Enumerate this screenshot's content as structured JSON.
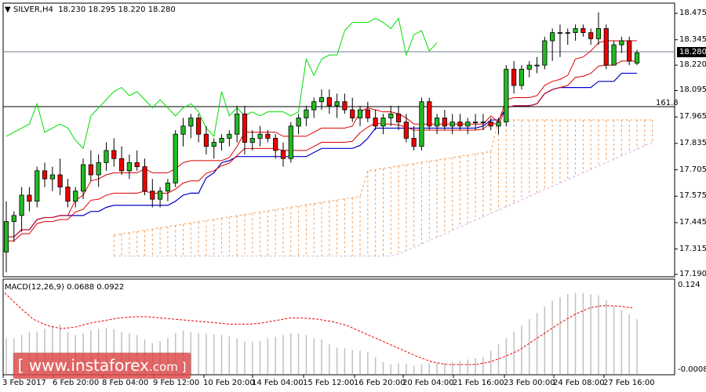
{
  "header": {
    "symbol": "SILVER,H4",
    "ohlc": "18.230 18.295 18.220 18.280",
    "arrow": "▼"
  },
  "price_axis": {
    "ticks": [
      "18.475",
      "18.345",
      "18.280",
      "18.220",
      "18.095",
      "17.965",
      "17.835",
      "17.705",
      "17.575",
      "17.445",
      "17.315",
      "17.190"
    ],
    "current_price": "18.280"
  },
  "fib_label": "161.8",
  "macd": {
    "title": "MACD(12,26,9) 0.0688 0.0922",
    "axis_top": "0.124",
    "axis_bottom": "-0.0008"
  },
  "time_axis": [
    "3 Feb 2017",
    "6 Feb 20:00",
    "8 Feb 04:00",
    "9 Feb 12:00",
    "10 Feb 20:00",
    "14 Feb 04:00",
    "15 Feb 12:00",
    "16 Feb 20:00",
    "20 Feb 04:00",
    "21 Feb 16:00",
    "23 Feb 00:00",
    "24 Feb 08:00",
    "27 Feb 16:00"
  ],
  "watermark": {
    "text": "[ www.instaforex",
    "suffix": ".com ]"
  },
  "colors": {
    "bull": "#22bb22",
    "bear": "#ee0000",
    "kijun": "#0000cc",
    "tenkan": "#dd0000",
    "chikou": "#00dd00",
    "cloud": "#f0a060",
    "cloud_b": "#d8b0e0",
    "macd_hist": "#c0c0c0",
    "macd_signal": "#ee0000"
  },
  "chart_data": {
    "type": "candlestick",
    "title": "SILVER,H4",
    "ylim": [
      17.19,
      18.52
    ],
    "x_labels": [
      "3 Feb 2017",
      "6 Feb 20:00",
      "8 Feb 04:00",
      "9 Feb 12:00",
      "10 Feb 20:00",
      "14 Feb 04:00",
      "15 Feb 12:00",
      "16 Feb 20:00",
      "20 Feb 04:00",
      "21 Feb 16:00",
      "23 Feb 00:00",
      "24 Feb 08:00",
      "27 Feb 16:00"
    ],
    "last_bar": {
      "open": 18.23,
      "high": 18.295,
      "low": 18.22,
      "close": 18.28
    },
    "horizontal_lines": [
      {
        "label": "161.8",
        "value": 18.0
      },
      {
        "label": "current",
        "value": 18.28
      }
    ],
    "candles": [
      [
        17.3,
        17.55,
        17.2,
        17.45
      ],
      [
        17.45,
        17.5,
        17.35,
        17.48
      ],
      [
        17.48,
        17.62,
        17.4,
        17.58
      ],
      [
        17.58,
        17.62,
        17.5,
        17.55
      ],
      [
        17.55,
        17.72,
        17.52,
        17.7
      ],
      [
        17.7,
        17.74,
        17.62,
        17.66
      ],
      [
        17.66,
        17.72,
        17.6,
        17.68
      ],
      [
        17.68,
        17.76,
        17.58,
        17.62
      ],
      [
        17.62,
        17.66,
        17.52,
        17.55
      ],
      [
        17.55,
        17.62,
        17.52,
        17.6
      ],
      [
        17.6,
        17.76,
        17.56,
        17.73
      ],
      [
        17.73,
        17.8,
        17.65,
        17.68
      ],
      [
        17.68,
        17.78,
        17.62,
        17.74
      ],
      [
        17.74,
        17.84,
        17.7,
        17.8
      ],
      [
        17.8,
        17.86,
        17.72,
        17.76
      ],
      [
        17.76,
        17.82,
        17.68,
        17.7
      ],
      [
        17.7,
        17.78,
        17.66,
        17.74
      ],
      [
        17.74,
        17.8,
        17.7,
        17.72
      ],
      [
        17.72,
        17.76,
        17.58,
        17.6
      ],
      [
        17.6,
        17.66,
        17.52,
        17.56
      ],
      [
        17.56,
        17.62,
        17.52,
        17.6
      ],
      [
        17.6,
        17.66,
        17.55,
        17.64
      ],
      [
        17.64,
        17.9,
        17.62,
        17.88
      ],
      [
        17.88,
        17.96,
        17.82,
        17.92
      ],
      [
        17.92,
        17.98,
        17.86,
        17.96
      ],
      [
        17.96,
        17.98,
        17.84,
        17.88
      ],
      [
        17.88,
        17.92,
        17.78,
        17.82
      ],
      [
        17.82,
        17.86,
        17.76,
        17.84
      ],
      [
        17.84,
        17.88,
        17.8,
        17.86
      ],
      [
        17.86,
        17.9,
        17.82,
        17.88
      ],
      [
        17.88,
        18.02,
        17.84,
        17.98
      ],
      [
        17.98,
        18.02,
        17.78,
        17.84
      ],
      [
        17.84,
        17.9,
        17.8,
        17.86
      ],
      [
        17.86,
        17.92,
        17.82,
        17.88
      ],
      [
        17.88,
        17.9,
        17.84,
        17.86
      ],
      [
        17.86,
        17.88,
        17.76,
        17.8
      ],
      [
        17.8,
        17.84,
        17.72,
        17.76
      ],
      [
        17.76,
        17.94,
        17.74,
        17.92
      ],
      [
        17.92,
        17.98,
        17.88,
        17.96
      ],
      [
        17.96,
        18.02,
        17.92,
        18.0
      ],
      [
        18.0,
        18.06,
        17.96,
        18.04
      ],
      [
        18.04,
        18.1,
        18.0,
        18.06
      ],
      [
        18.06,
        18.1,
        17.98,
        18.02
      ],
      [
        18.02,
        18.08,
        17.96,
        18.04
      ],
      [
        18.04,
        18.08,
        17.98,
        18.0
      ],
      [
        18.0,
        18.06,
        17.94,
        17.96
      ],
      [
        17.96,
        18.02,
        17.92,
        18.0
      ],
      [
        18.0,
        18.04,
        17.94,
        17.96
      ],
      [
        17.96,
        18.0,
        17.9,
        17.92
      ],
      [
        17.92,
        17.98,
        17.88,
        17.96
      ],
      [
        17.96,
        18.02,
        17.92,
        17.98
      ],
      [
        17.98,
        18.02,
        17.9,
        17.94
      ],
      [
        17.94,
        17.98,
        17.84,
        17.86
      ],
      [
        17.86,
        17.92,
        17.8,
        17.82
      ],
      [
        17.82,
        18.06,
        17.8,
        18.04
      ],
      [
        18.04,
        18.06,
        17.9,
        17.92
      ],
      [
        17.92,
        17.98,
        17.88,
        17.96
      ],
      [
        17.96,
        18.0,
        17.9,
        17.92
      ],
      [
        17.92,
        17.98,
        17.88,
        17.94
      ],
      [
        17.94,
        17.98,
        17.9,
        17.92
      ],
      [
        17.92,
        17.96,
        17.88,
        17.94
      ],
      [
        17.94,
        17.98,
        17.9,
        17.94
      ],
      [
        17.94,
        17.98,
        17.9,
        17.94
      ],
      [
        17.94,
        17.96,
        17.9,
        17.92
      ],
      [
        17.92,
        17.96,
        17.88,
        17.94
      ],
      [
        17.94,
        18.22,
        17.92,
        18.2
      ],
      [
        18.2,
        18.24,
        18.08,
        18.12
      ],
      [
        18.12,
        18.22,
        18.1,
        18.2
      ],
      [
        18.2,
        18.24,
        18.16,
        18.22
      ],
      [
        18.22,
        18.26,
        18.18,
        18.22
      ],
      [
        18.22,
        18.36,
        18.2,
        18.34
      ],
      [
        18.34,
        18.4,
        18.24,
        18.38
      ],
      [
        18.38,
        18.42,
        18.26,
        18.38
      ],
      [
        18.38,
        18.4,
        18.32,
        18.38
      ],
      [
        18.38,
        18.42,
        18.34,
        18.4
      ],
      [
        18.4,
        18.42,
        18.36,
        18.38
      ],
      [
        18.38,
        18.4,
        18.32,
        18.35
      ],
      [
        18.35,
        18.48,
        18.32,
        18.4
      ],
      [
        18.4,
        18.42,
        18.2,
        18.22
      ],
      [
        18.22,
        18.34,
        18.22,
        18.32
      ],
      [
        18.32,
        18.36,
        18.28,
        18.34
      ],
      [
        18.34,
        18.36,
        18.22,
        18.24
      ],
      [
        18.23,
        18.295,
        18.22,
        18.28
      ]
    ]
  }
}
